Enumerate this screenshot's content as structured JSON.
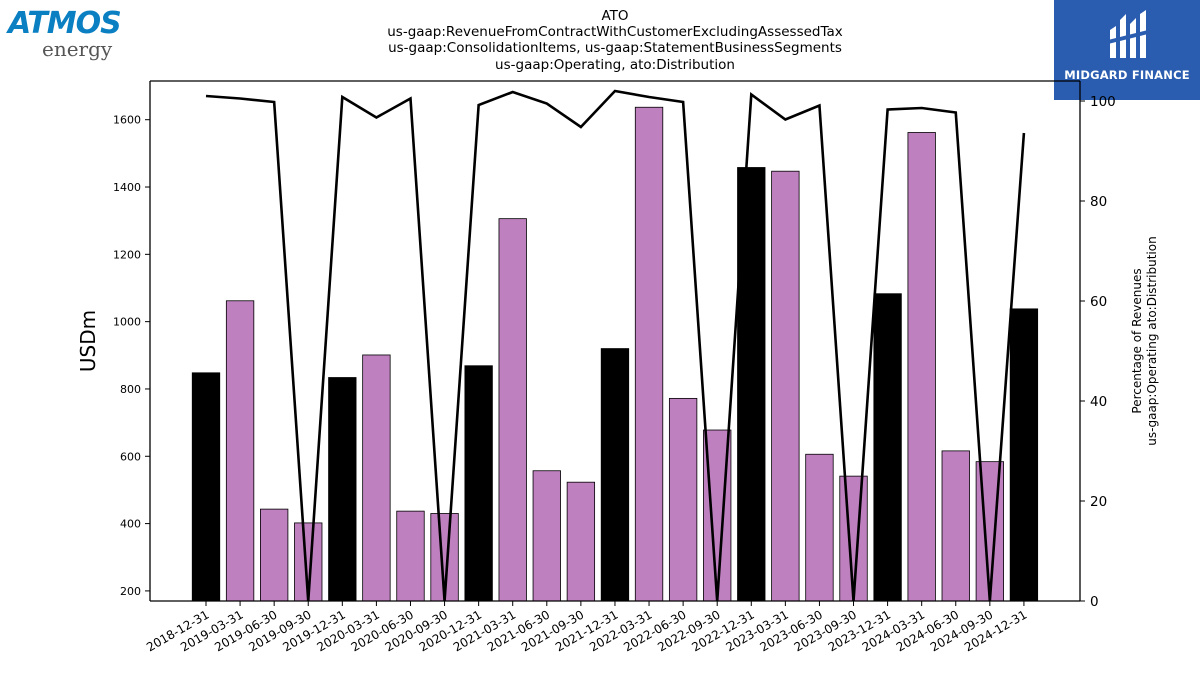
{
  "logos": {
    "atmos_word": "ATMOS",
    "atmos_sub": "energy",
    "midgard_name": "MIDGARD FINANCE"
  },
  "chart_data": {
    "type": "bar",
    "title_lines": [
      "ATO",
      "us-gaap:RevenueFromContractWithCustomerExcludingAssessedTax",
      "us-gaap:ConsolidationItems, us-gaap:StatementBusinessSegments",
      "us-gaap:Operating, ato:Distribution"
    ],
    "ylabel": "USDm",
    "y2label_lines": [
      "Percentage of Revenues",
      "us-gaap:Operating ato:Distribution"
    ],
    "ylim": [
      170,
      1715
    ],
    "yticks": [
      200,
      400,
      600,
      800,
      1000,
      1200,
      1400,
      1600
    ],
    "y2lim": [
      0,
      104
    ],
    "y2ticks": [
      0,
      20,
      40,
      60,
      80,
      100
    ],
    "categories": [
      "2018-12-31",
      "2019-03-31",
      "2019-06-30",
      "2019-09-30",
      "2019-12-31",
      "2020-03-31",
      "2020-06-30",
      "2020-09-30",
      "2020-12-31",
      "2021-03-31",
      "2021-06-30",
      "2021-09-30",
      "2021-12-31",
      "2022-03-31",
      "2022-06-30",
      "2022-09-30",
      "2022-12-31",
      "2023-03-31",
      "2023-06-30",
      "2023-09-30",
      "2023-12-31",
      "2024-03-31",
      "2024-06-30",
      "2024-09-30",
      "2024-12-31"
    ],
    "bar_values": [
      848,
      1062,
      443,
      402,
      834,
      901,
      437,
      430,
      869,
      1306,
      557,
      523,
      920,
      1637,
      772,
      678,
      1458,
      1447,
      606,
      541,
      1083,
      1562,
      616,
      584,
      1038
    ],
    "bar_colors": [
      "#000000",
      "#bf80bf",
      "#bf80bf",
      "#bf80bf",
      "#000000",
      "#bf80bf",
      "#bf80bf",
      "#bf80bf",
      "#000000",
      "#bf80bf",
      "#bf80bf",
      "#bf80bf",
      "#000000",
      "#bf80bf",
      "#bf80bf",
      "#bf80bf",
      "#000000",
      "#bf80bf",
      "#bf80bf",
      "#bf80bf",
      "#000000",
      "#bf80bf",
      "#bf80bf",
      "#bf80bf",
      "#000000"
    ],
    "line_values": [
      101,
      100.5,
      99.8,
      0,
      100.8,
      96.7,
      100.5,
      0,
      99.2,
      101.8,
      99.5,
      94.8,
      102,
      100.8,
      99.8,
      0,
      101.3,
      96.3,
      99.1,
      0,
      98.3,
      98.6,
      97.7,
      0,
      93.6
    ],
    "grid": false
  }
}
